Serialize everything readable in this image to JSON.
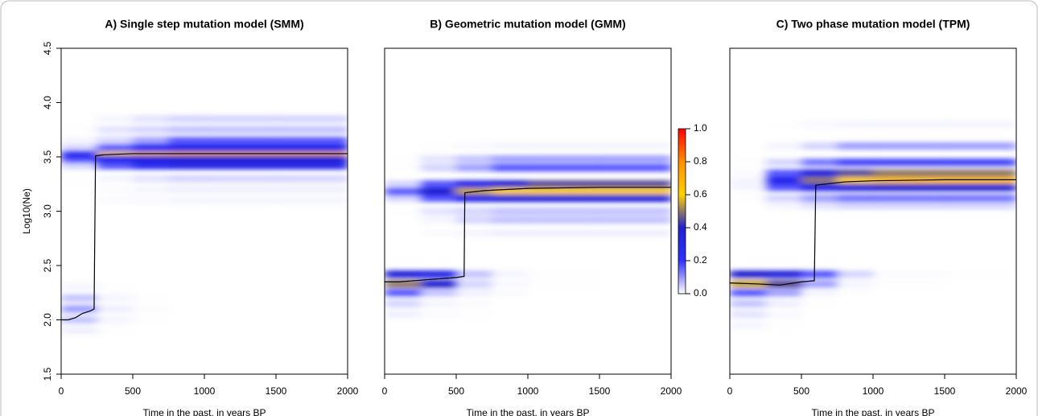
{
  "chart_data": [
    {
      "type": "heatmap",
      "title": "A) Single step mutation model (SMM)",
      "x_label": "Time in the past, in years BP",
      "y_label": "Log10(Ne)",
      "xlim": [
        0,
        2000
      ],
      "xticks": [
        0,
        500,
        1000,
        1500,
        2000
      ],
      "ylim": [
        1.5,
        4.5
      ],
      "yticks": [
        1.5,
        {
          "value": 2,
          "label": "2.0"
        },
        2.5,
        {
          "value": 3,
          "label": "3.0"
        },
        3.5,
        {
          "value": 4,
          "label": "4.0"
        },
        4.5
      ],
      "x_edges": [
        0,
        250,
        500,
        750,
        1000,
        1500,
        2000
      ],
      "rows": [
        {
          "y": 3.52,
          "z": [
            0.3,
            0.6,
            0.65,
            0.7,
            0.7,
            0.7
          ]
        },
        {
          "y": 3.48,
          "z": [
            0.2,
            0.3,
            0.35,
            0.4,
            0.4,
            0.4
          ]
        },
        {
          "y": 3.58,
          "z": [
            0.1,
            0.2,
            0.25,
            0.3,
            0.3,
            0.3
          ]
        },
        {
          "y": 3.65,
          "z": [
            0.05,
            0.1,
            0.15,
            0.2,
            0.2,
            0.2
          ]
        },
        {
          "y": 3.42,
          "z": [
            0.1,
            0.2,
            0.25,
            0.3,
            0.3,
            0.3
          ]
        },
        {
          "y": 3.75,
          "z": [
            0.02,
            0.08,
            0.1,
            0.12,
            0.12,
            0.12
          ]
        },
        {
          "y": 3.85,
          "z": [
            0,
            0.05,
            0.08,
            0.1,
            0.1,
            0.1
          ]
        },
        {
          "y": 3.3,
          "z": [
            0.02,
            0.05,
            0.08,
            0.1,
            0.1,
            0.1
          ]
        },
        {
          "y": 3.2,
          "z": [
            0,
            0.03,
            0.05,
            0.06,
            0.06,
            0.06
          ]
        },
        {
          "y": 3.1,
          "z": [
            0,
            0.03,
            0.04,
            0.05,
            0.05,
            0.05
          ]
        },
        {
          "y": 2.3,
          "z": [
            0.05,
            0.02,
            0.01,
            0,
            0,
            0
          ]
        },
        {
          "y": 2.2,
          "z": [
            0.12,
            0.05,
            0.02,
            0.01,
            0,
            0
          ]
        },
        {
          "y": 2.1,
          "z": [
            0.15,
            0.06,
            0.03,
            0.01,
            0,
            0
          ]
        },
        {
          "y": 2.0,
          "z": [
            0.12,
            0.05,
            0.02,
            0.01,
            0,
            0
          ]
        },
        {
          "y": 1.9,
          "z": [
            0.06,
            0.02,
            0.01,
            0,
            0,
            0
          ]
        }
      ],
      "line": {
        "color": "#000000",
        "x": [
          0,
          50,
          100,
          150,
          200,
          230,
          240,
          300,
          500,
          1000,
          2000
        ],
        "y": [
          2.0,
          2.0,
          2.02,
          2.06,
          2.08,
          2.1,
          3.51,
          3.52,
          3.53,
          3.53,
          3.53
        ]
      }
    },
    {
      "type": "heatmap",
      "title": "B) Geometric mutation model (GMM)",
      "x_label": "Time in the past, in years BP",
      "xlim": [
        0,
        2000
      ],
      "xticks": [
        0,
        500,
        1000,
        1500,
        2000
      ],
      "ylim": [
        1.5,
        4.5
      ],
      "x_edges": [
        0,
        250,
        500,
        750,
        1000,
        1500,
        2000
      ],
      "rows": [
        {
          "y": 3.18,
          "z": [
            0.2,
            0.4,
            0.55,
            0.6,
            0.6,
            0.6
          ]
        },
        {
          "y": 3.25,
          "z": [
            0.1,
            0.2,
            0.3,
            0.4,
            0.45,
            0.45
          ]
        },
        {
          "y": 3.12,
          "z": [
            0.1,
            0.2,
            0.3,
            0.35,
            0.35,
            0.35
          ]
        },
        {
          "y": 3.4,
          "z": [
            0.02,
            0.1,
            0.15,
            0.2,
            0.2,
            0.2
          ]
        },
        {
          "y": 3.48,
          "z": [
            0.02,
            0.08,
            0.12,
            0.15,
            0.15,
            0.15
          ]
        },
        {
          "y": 3.0,
          "z": [
            0.02,
            0.08,
            0.1,
            0.12,
            0.12,
            0.12
          ]
        },
        {
          "y": 2.92,
          "z": [
            0.01,
            0.05,
            0.1,
            0.12,
            0.12,
            0.12
          ]
        },
        {
          "y": 3.6,
          "z": [
            0,
            0.02,
            0.04,
            0.05,
            0.05,
            0.05
          ]
        },
        {
          "y": 2.8,
          "z": [
            0,
            0.03,
            0.05,
            0.06,
            0.06,
            0.06
          ]
        },
        {
          "y": 2.42,
          "z": [
            0.35,
            0.3,
            0.12,
            0.05,
            0.02,
            0.01
          ]
        },
        {
          "y": 2.33,
          "z": [
            0.5,
            0.4,
            0.1,
            0.04,
            0.02,
            0.01
          ]
        },
        {
          "y": 2.25,
          "z": [
            0.2,
            0.12,
            0.06,
            0.03,
            0.01,
            0
          ]
        },
        {
          "y": 2.15,
          "z": [
            0.1,
            0.05,
            0.03,
            0.01,
            0,
            0
          ]
        },
        {
          "y": 2.05,
          "z": [
            0.06,
            0.03,
            0.02,
            0,
            0,
            0
          ]
        }
      ],
      "line": {
        "color": "#000000",
        "x": [
          0,
          100,
          300,
          500,
          555,
          560,
          700,
          1000,
          1500,
          2000
        ],
        "y": [
          2.35,
          2.35,
          2.37,
          2.39,
          2.4,
          3.17,
          3.19,
          3.21,
          3.22,
          3.22
        ]
      }
    },
    {
      "type": "heatmap",
      "title": "C) Two phase mutation model (TPM)",
      "x_label": "Time in the past, in years BP",
      "xlim": [
        0,
        2000
      ],
      "xticks": [
        0,
        500,
        1000,
        1500,
        2000
      ],
      "ylim": [
        1.5,
        4.5
      ],
      "x_edges": [
        0,
        250,
        500,
        750,
        1000,
        1500,
        2000
      ],
      "rows": [
        {
          "y": 3.28,
          "z": [
            0.05,
            0.3,
            0.5,
            0.6,
            0.65,
            0.65
          ]
        },
        {
          "y": 3.35,
          "z": [
            0.03,
            0.2,
            0.35,
            0.45,
            0.5,
            0.5
          ]
        },
        {
          "y": 3.22,
          "z": [
            0.05,
            0.2,
            0.3,
            0.35,
            0.4,
            0.4
          ]
        },
        {
          "y": 3.45,
          "z": [
            0.02,
            0.1,
            0.18,
            0.22,
            0.22,
            0.22
          ]
        },
        {
          "y": 3.6,
          "z": [
            0.01,
            0.05,
            0.1,
            0.15,
            0.15,
            0.15
          ]
        },
        {
          "y": 3.12,
          "z": [
            0.02,
            0.1,
            0.15,
            0.18,
            0.18,
            0.18
          ]
        },
        {
          "y": 3.05,
          "z": [
            0.01,
            0.05,
            0.08,
            0.1,
            0.1,
            0.1
          ]
        },
        {
          "y": 3.8,
          "z": [
            0,
            0.02,
            0.04,
            0.05,
            0.05,
            0.05
          ]
        },
        {
          "y": 2.42,
          "z": [
            0.4,
            0.35,
            0.2,
            0.1,
            0.03,
            0.02
          ]
        },
        {
          "y": 2.33,
          "z": [
            0.55,
            0.45,
            0.15,
            0.05,
            0.02,
            0.01
          ]
        },
        {
          "y": 2.25,
          "z": [
            0.2,
            0.15,
            0.05,
            0.02,
            0.01,
            0
          ]
        },
        {
          "y": 2.15,
          "z": [
            0.12,
            0.06,
            0.02,
            0.01,
            0,
            0
          ]
        },
        {
          "y": 2.05,
          "z": [
            0.08,
            0.04,
            0.01,
            0,
            0,
            0
          ]
        },
        {
          "y": 1.95,
          "z": [
            0.05,
            0.02,
            0,
            0,
            0,
            0
          ]
        }
      ],
      "line": {
        "color": "#000000",
        "x": [
          0,
          200,
          350,
          500,
          590,
          600,
          800,
          1000,
          1500,
          2000
        ],
        "y": [
          2.34,
          2.33,
          2.32,
          2.35,
          2.36,
          3.24,
          3.27,
          3.28,
          3.29,
          3.29
        ]
      }
    }
  ],
  "colorbar": {
    "colors": [
      "#ffffff",
      "#3030ff",
      "#2020d0",
      "#ffd000",
      "#ff9000",
      "#ff0000"
    ],
    "lim": [
      0,
      1
    ],
    "ticks": [
      {
        "value": 0,
        "label": "0.0"
      },
      0.2,
      0.4,
      0.6,
      0.8,
      {
        "value": 1,
        "label": "1.0"
      }
    ]
  }
}
